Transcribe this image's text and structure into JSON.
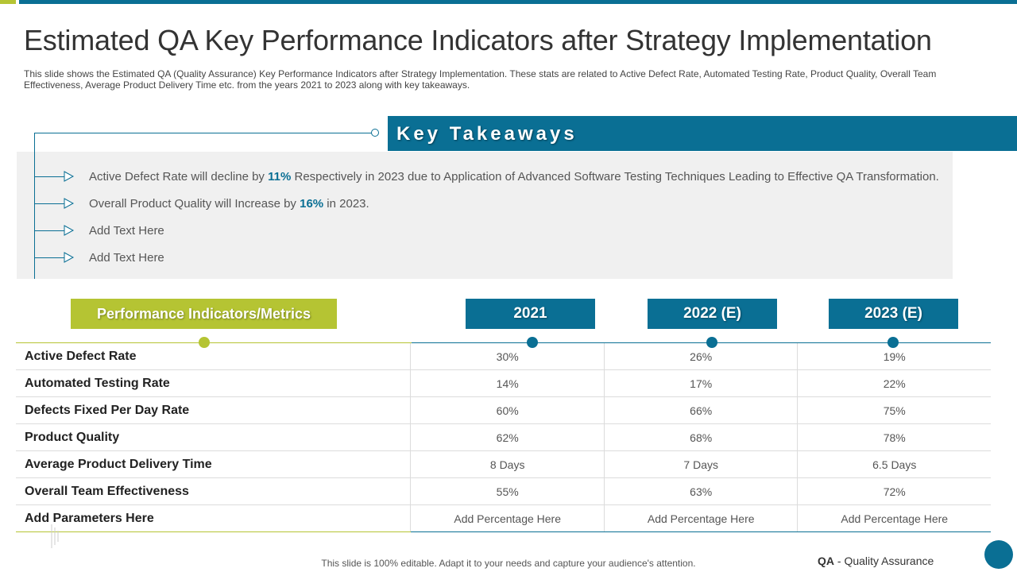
{
  "title": "Estimated QA Key Performance Indicators after Strategy Implementation",
  "subtitle": "This slide shows the Estimated QA (Quality Assurance) Key Performance Indicators after Strategy Implementation. These stats are related to Active  Defect Rate, Automated Testing Rate, Product Quality, Overall Team Effectiveness, Average Product Delivery Time etc. from the years 2021 to 2023 along with key takeaways.",
  "key_takeaways": {
    "heading": "Key Takeaways",
    "items": [
      {
        "before": "Active Defect Rate will decline by ",
        "highlight": "11%",
        "after": " Respectively in 2023 due to Application of Advanced Software Testing Techniques Leading to Effective QA Transformation."
      },
      {
        "before": "Overall Product Quality will Increase by ",
        "highlight": "16%",
        "after": " in 2023."
      },
      {
        "before": "Add Text Here",
        "highlight": "",
        "after": ""
      },
      {
        "before": "Add Text Here",
        "highlight": "",
        "after": ""
      }
    ]
  },
  "table": {
    "headers": [
      "Performance Indicators/Metrics",
      "2021",
      "2022 (E)",
      "2023 (E)"
    ],
    "rows": [
      [
        "Active Defect Rate",
        "30%",
        "26%",
        "19%"
      ],
      [
        "Automated Testing Rate",
        "14%",
        "17%",
        "22%"
      ],
      [
        "Defects Fixed Per Day Rate",
        "60%",
        "66%",
        "75%"
      ],
      [
        "Product Quality",
        "62%",
        "68%",
        "78%"
      ],
      [
        "Average Product Delivery Time",
        "8 Days",
        "7 Days",
        "6.5 Days"
      ],
      [
        "Overall Team Effectiveness",
        "55%",
        "63%",
        "72%"
      ],
      [
        "Add Parameters Here",
        "Add Percentage Here",
        "Add Percentage Here",
        "Add Percentage Here"
      ]
    ]
  },
  "footer": {
    "note": "This slide is 100% editable. Adapt it to your needs and capture your audience's attention.",
    "abbr": "QA",
    "abbr_def": " - Quality Assurance"
  },
  "colors": {
    "accent_green": "#b5c433",
    "accent_blue": "#0a6f94"
  }
}
